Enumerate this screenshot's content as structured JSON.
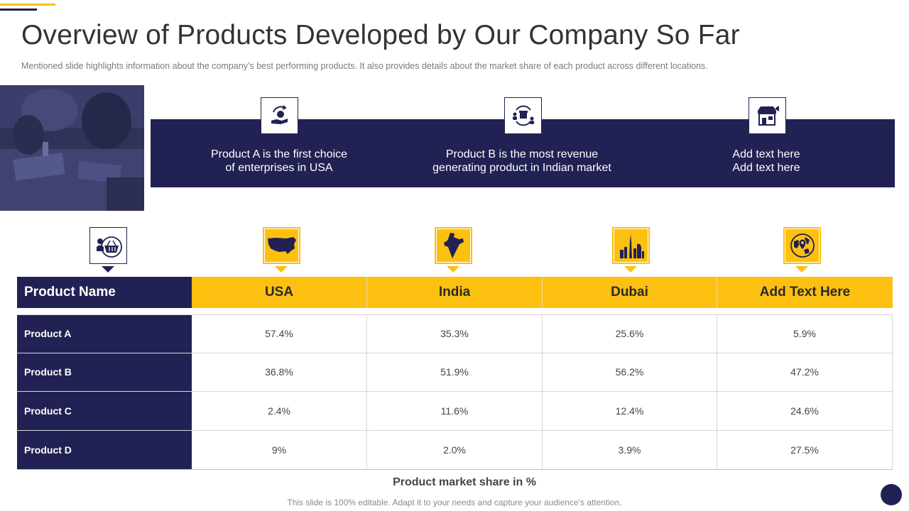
{
  "header": {
    "title": "Overview of Products Developed by Our Company So Far",
    "subtitle": "Mentioned slide highlights information about the company’s best performing products. It also provides details about the market share of each product across different locations."
  },
  "banner": {
    "items": [
      {
        "line1": "Product A is the first choice",
        "line2": "of enterprises in USA",
        "icon": "hand-money-cycle-icon"
      },
      {
        "line1": "Product B is the most revenue",
        "line2": "generating product in Indian market",
        "icon": "store-people-cycle-icon"
      },
      {
        "line1": "Add text here",
        "line2": "Add text here",
        "icon": "shop-megaphone-icon"
      }
    ]
  },
  "table": {
    "columns": [
      "Product Name",
      "USA",
      "India",
      "Dubai",
      "Add Text Here"
    ],
    "column_icons": [
      "market-basket-icon",
      "usa-map-icon",
      "india-map-icon",
      "dubai-skyline-icon",
      "globe-location-icon"
    ],
    "rows": [
      {
        "name": "Product A",
        "values": [
          "57.4%",
          "35.3%",
          "25.6%",
          "5.9%"
        ]
      },
      {
        "name": "Product B",
        "values": [
          "36.8%",
          "51.9%",
          "56.2%",
          "47.2%"
        ]
      },
      {
        "name": "Product C",
        "values": [
          "2.4%",
          "11.6%",
          "12.4%",
          "24.6%"
        ]
      },
      {
        "name": "Product D",
        "values": [
          "9%",
          "2.0%",
          "3.9%",
          "27.5%"
        ]
      }
    ],
    "caption": "Product market share in %"
  },
  "footer": "This slide is 100% editable. Adapt it to your needs and capture your audience's attention.",
  "colors": {
    "navy": "#212153",
    "yellow": "#fcc010"
  }
}
